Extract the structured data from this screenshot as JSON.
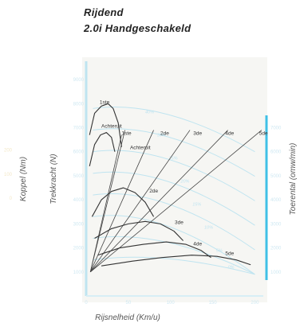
{
  "header": {
    "line1": "Rijdend",
    "line2": "2.0i Handgeschakeld"
  },
  "chart_data": {
    "type": "line",
    "xlabel": "Rijsnelheid (Km/u)",
    "ylabel_left": "Trekkracht (N)",
    "ylabel_outer": "Koppel (Nm)",
    "ylabel_right": "Toerental (omw/min)",
    "x_ticks": [
      "0",
      "50",
      "100",
      "150",
      "200"
    ],
    "y_ticks": [
      "1000",
      "2000",
      "3000",
      "4000",
      "5000",
      "6000",
      "7000",
      "8000",
      "9000"
    ],
    "rpm_ticks": [
      "1000",
      "2000",
      "3000",
      "4000",
      "5000",
      "6000",
      "7000"
    ],
    "koppel_ticks": [
      "200",
      "100",
      "0"
    ],
    "xlim": [
      0,
      210
    ],
    "ylim": [
      0,
      9500
    ],
    "gradient_labels": [
      "40%",
      "30%",
      "25%",
      "20%",
      "15%",
      "10%",
      "5%",
      "0%"
    ],
    "traction_series": [
      {
        "name": "1ste",
        "x": [
          4,
          10,
          18,
          26,
          32,
          38,
          42
        ],
        "y": [
          6700,
          7600,
          7900,
          8000,
          7800,
          7200,
          6200
        ]
      },
      {
        "name": "Achteruit",
        "x": [
          4,
          10,
          17,
          24,
          30,
          34
        ],
        "y": [
          5400,
          6300,
          6700,
          6800,
          6600,
          6000
        ]
      },
      {
        "name": "2de",
        "x": [
          7,
          18,
          30,
          44,
          58,
          70,
          80
        ],
        "y": [
          3300,
          4000,
          4350,
          4500,
          4300,
          3900,
          3300
        ]
      },
      {
        "name": "3de",
        "x": [
          10,
          30,
          50,
          70,
          88,
          104,
          115
        ],
        "y": [
          2400,
          2800,
          3000,
          3100,
          3000,
          2700,
          2300
        ]
      },
      {
        "name": "4de",
        "x": [
          14,
          40,
          68,
          95,
          118,
          136,
          148
        ],
        "y": [
          1700,
          2000,
          2150,
          2250,
          2150,
          1900,
          1600
        ]
      },
      {
        "name": "5de",
        "x": [
          18,
          55,
          90,
          125,
          155,
          178,
          195
        ],
        "y": [
          1250,
          1450,
          1600,
          1700,
          1650,
          1500,
          1300
        ]
      }
    ],
    "rpm_series": [
      {
        "name": "1ste",
        "x": [
          5,
          46
        ],
        "y": [
          1000,
          6900
        ]
      },
      {
        "name": "Achteruit",
        "x": [
          5,
          42
        ],
        "y": [
          1000,
          6700
        ]
      },
      {
        "name": "2de",
        "x": [
          5,
          80
        ],
        "y": [
          1000,
          6900
        ]
      },
      {
        "name": "3de",
        "x": [
          5,
          123
        ],
        "y": [
          1000,
          6900
        ]
      },
      {
        "name": "4de",
        "x": [
          5,
          168
        ],
        "y": [
          1000,
          6900
        ]
      },
      {
        "name": "5de",
        "x": [
          5,
          208
        ],
        "y": [
          1000,
          6900
        ]
      }
    ],
    "curve_labels": [
      {
        "text": "1ste",
        "x": 16,
        "y": 8000
      },
      {
        "text": "Achteruit",
        "x": 18,
        "y": 7000
      },
      {
        "text": "1ste",
        "x": 42,
        "y": 6700
      },
      {
        "text": "Achteruit",
        "x": 52,
        "y": 6100
      },
      {
        "text": "2de",
        "x": 88,
        "y": 6700
      },
      {
        "text": "3de",
        "x": 127,
        "y": 6700
      },
      {
        "text": "4de",
        "x": 165,
        "y": 6700
      },
      {
        "text": "5de",
        "x": 205,
        "y": 6700
      },
      {
        "text": "2de",
        "x": 75,
        "y": 4300
      },
      {
        "text": "3de",
        "x": 105,
        "y": 3000
      },
      {
        "text": "4de",
        "x": 127,
        "y": 2100
      },
      {
        "text": "5de",
        "x": 165,
        "y": 1700
      }
    ]
  }
}
